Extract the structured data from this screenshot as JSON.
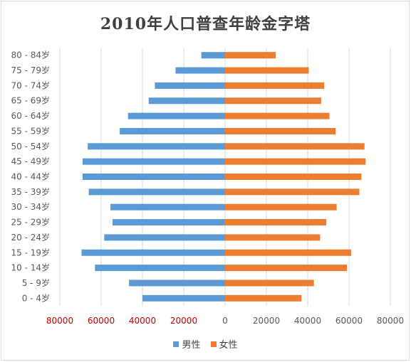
{
  "chart_data": {
    "type": "bar",
    "orientation": "horizontal",
    "title": "2010年人口普查年龄金字塔",
    "categories": [
      "0 - 4岁",
      "5 - 9岁",
      "10 - 14岁",
      "15 - 19岁",
      "20 - 24岁",
      "25 - 29岁",
      "30 - 34岁",
      "35 - 39岁",
      "40 - 44岁",
      "45 - 49岁",
      "50 - 54岁",
      "55 - 59岁",
      "60 - 64岁",
      "65 - 69岁",
      "70 - 74岁",
      "75 - 79岁",
      "80 - 84岁"
    ],
    "series": [
      {
        "name": "男性",
        "color": "#5b9bd5",
        "values": [
          40000,
          46500,
          63000,
          69500,
          58500,
          54500,
          55500,
          66000,
          69000,
          69000,
          66500,
          51000,
          47000,
          37000,
          34000,
          24000,
          11500
        ]
      },
      {
        "name": "女性",
        "color": "#ed7d31",
        "values": [
          37000,
          43000,
          59000,
          61000,
          46000,
          49000,
          54000,
          65000,
          66000,
          68000,
          67500,
          53500,
          50500,
          46500,
          48000,
          40500,
          24500
        ]
      }
    ],
    "x_ticks": [
      "80000",
      "60000",
      "40000",
      "20000",
      "0",
      "20000",
      "40000",
      "60000",
      "80000"
    ],
    "xlim": [
      -80000,
      80000
    ],
    "grid": true,
    "legend_position": "bottom",
    "left_tick_color": "#c00000",
    "right_tick_color": "#595959"
  }
}
